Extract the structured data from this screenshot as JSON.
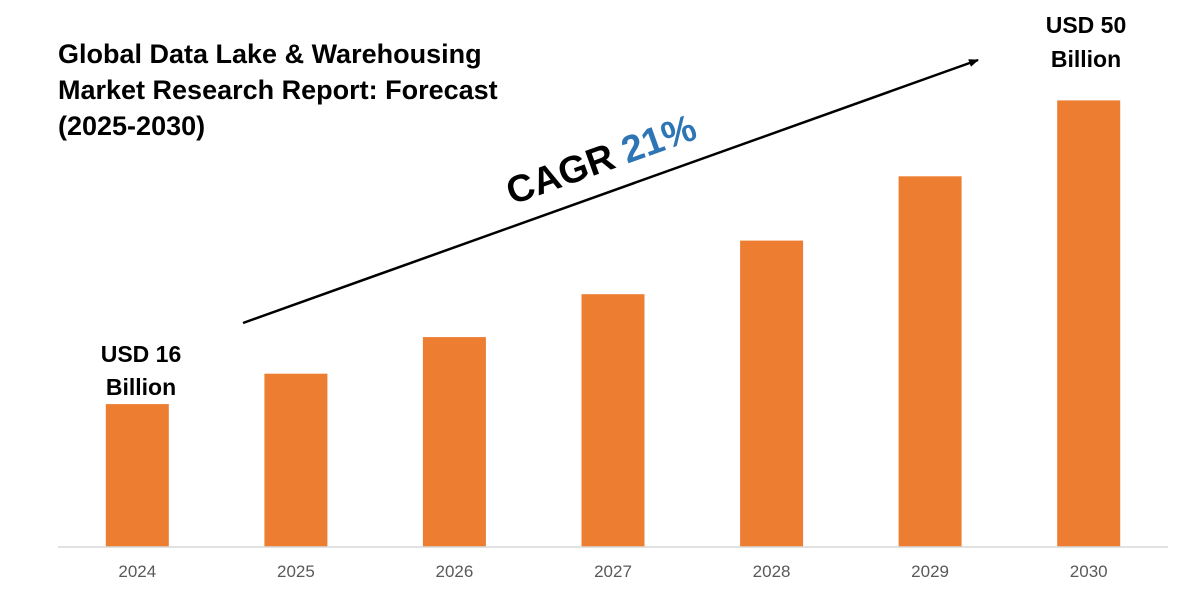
{
  "chart_data": {
    "type": "bar",
    "title_lines": [
      "Global Data Lake & Warehousing",
      "Market Research Report: Forecast",
      "(2025-2030)"
    ],
    "categories": [
      "2024",
      "2025",
      "2026",
      "2027",
      "2028",
      "2029",
      "2030"
    ],
    "values": [
      16,
      19.4,
      23.5,
      28.3,
      34.3,
      41.5,
      50
    ],
    "ylim": [
      0,
      59
    ],
    "bar_color": "#ED7D31",
    "axis_color": "#D9D9D9",
    "grid": false,
    "annotations": {
      "start_label": [
        "USD 16",
        "Billion"
      ],
      "end_label": [
        "USD 50",
        "Billion"
      ],
      "cagr_prefix": "CAGR ",
      "cagr_value": "21%",
      "cagr_value_color": "#2E75B6"
    }
  }
}
